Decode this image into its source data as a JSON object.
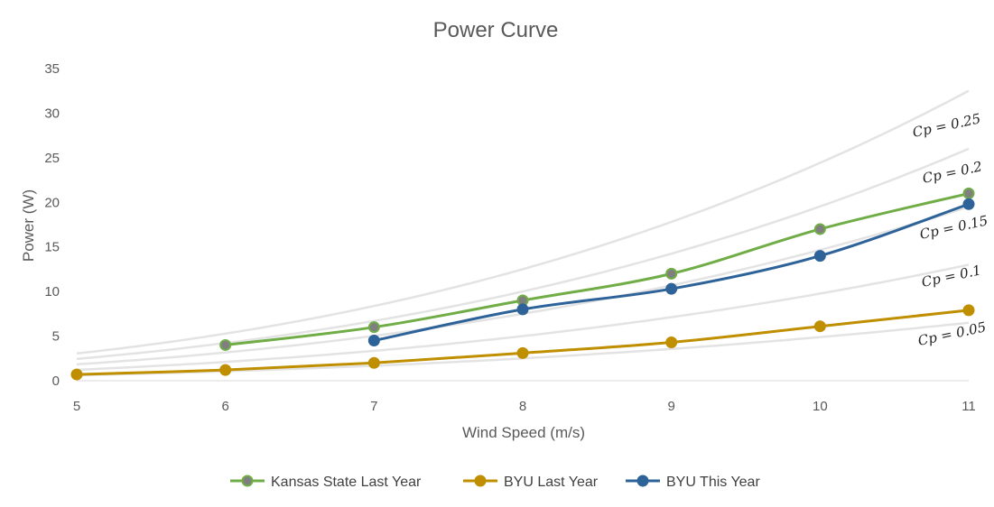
{
  "chart_data": {
    "type": "line",
    "title": "Power Curve",
    "xlabel": "Wind Speed (m/s)",
    "ylabel": "Power (W)",
    "xlim": [
      5,
      11
    ],
    "ylim": [
      0,
      35
    ],
    "xticks": [
      "5",
      "6",
      "7",
      "8",
      "9",
      "10",
      "11"
    ],
    "yticks": [
      "0",
      "5",
      "10",
      "15",
      "20",
      "25",
      "30",
      "35"
    ],
    "grid": false,
    "legend_position": "bottom",
    "series": [
      {
        "name": "Kansas State Last Year",
        "color": "#70AD47",
        "marker_fill": "#7F7F7F",
        "x": [
          6,
          7,
          8,
          9,
          10,
          11
        ],
        "y": [
          4,
          6,
          9,
          12,
          17,
          21
        ]
      },
      {
        "name": "BYU Last Year",
        "color": "#BF8F00",
        "marker_fill": "#BF8F00",
        "x": [
          5,
          6,
          7,
          8,
          9,
          10,
          11
        ],
        "y": [
          0.7,
          1.2,
          2.0,
          3.1,
          4.3,
          6.1,
          7.9
        ]
      },
      {
        "name": "BYU This Year",
        "color": "#2E6399",
        "marker_fill": "#2E6399",
        "x": [
          7,
          8,
          9,
          10,
          11
        ],
        "y": [
          4.5,
          8,
          10.3,
          14,
          19.8
        ]
      }
    ],
    "reference_curves": {
      "formula": "P = Cp * 0.0977 * v^3",
      "coefficient": 0.0977,
      "color": "#E3E3E3",
      "curves": [
        {
          "cp": 0.25,
          "label": "Cp = 0.25"
        },
        {
          "cp": 0.2,
          "label": "Cp = 0.2"
        },
        {
          "cp": 0.15,
          "label": "Cp = 0.15"
        },
        {
          "cp": 0.1,
          "label": "Cp = 0.1"
        },
        {
          "cp": 0.05,
          "label": "Cp = 0.05"
        }
      ]
    }
  }
}
